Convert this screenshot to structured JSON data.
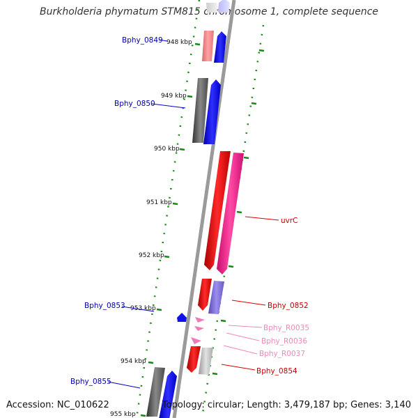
{
  "title": "Burkholderia phymatum STM815 chromosome 1, complete sequence",
  "footer": {
    "accession": "Accession: NC_010622",
    "topology": "Topology: circular; Length: 3,479,187 bp; Genes: 3,140"
  },
  "ruler_labels": [
    "948 kbp",
    "949 kbp",
    "950 kbp",
    "951 kbp",
    "952 kbp",
    "953 kbp",
    "954 kbp",
    "955 kbp"
  ],
  "gene_labels": {
    "bphy_0849": "Bphy_0849",
    "bphy_0850": "Bphy_0850",
    "uvrc": "uvrC",
    "bphy_0852": "Bphy_0852",
    "bphy_0853": "Bphy_0853",
    "bphy_r0035": "Bphy_R0035",
    "bphy_r0036": "Bphy_R0036",
    "bphy_r0037": "Bphy_R0037",
    "bphy_0854": "Bphy_0854",
    "bphy_0855": "Bphy_0855"
  },
  "colors": {
    "forward_cds_label": "#0000aa",
    "reverse_cds_label": "#cc0000",
    "rna_label": "#ee88bb",
    "tick_green": "#138a13",
    "backbone": "#999999"
  }
}
